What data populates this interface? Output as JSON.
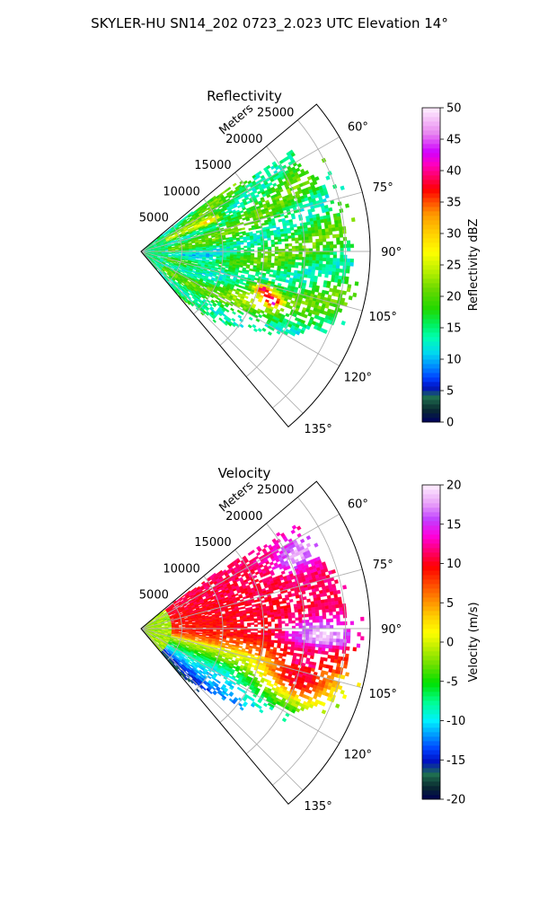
{
  "figure": {
    "title": "SKYLER-HU  SN14_202  0723_2.023 UTC Elevation 14°"
  },
  "chart_data": [
    {
      "type": "heatmap",
      "subtype": "polar-sector",
      "title": "Reflectivity",
      "range_label": "Meters",
      "range_ticks": [
        5000,
        10000,
        15000,
        20000,
        25000
      ],
      "range_max": 28000,
      "theta_ticks": [
        "60°",
        "75°",
        "90°",
        "105°",
        "120°",
        "135°"
      ],
      "theta_tick_values": [
        60,
        75,
        90,
        105,
        120,
        135
      ],
      "theta_range": [
        50,
        140
      ],
      "grid": true,
      "colorbar": {
        "label": "Reflectivity dBZ",
        "min": 0,
        "max": 50,
        "ticks": [
          "0",
          "5",
          "10",
          "15",
          "20",
          "25",
          "30",
          "35",
          "40",
          "45",
          "50"
        ]
      },
      "features": [
        {
          "azimuth": 107,
          "range": 15500,
          "value": 45
        },
        {
          "azimuth": 110,
          "range": 17000,
          "value": 42
        },
        {
          "azimuth": 66,
          "range": 9000,
          "value": 33
        },
        {
          "azimuth": 100,
          "range": 8000,
          "value": 14
        },
        {
          "azimuth": 85,
          "range": 5000,
          "value": 22
        }
      ]
    },
    {
      "type": "heatmap",
      "subtype": "polar-sector",
      "title": "Velocity",
      "range_label": "Meters",
      "range_ticks": [
        5000,
        10000,
        15000,
        20000,
        25000
      ],
      "range_max": 28000,
      "theta_ticks": [
        "60°",
        "75°",
        "90°",
        "105°",
        "120°",
        "135°"
      ],
      "theta_tick_values": [
        60,
        75,
        90,
        105,
        120,
        135
      ],
      "theta_range": [
        50,
        140
      ],
      "grid": true,
      "colorbar": {
        "label": "Velocity (m/s)",
        "min": -20,
        "max": 20,
        "ticks": [
          "-20",
          "-15",
          "-10",
          "-5",
          "0",
          "5",
          "10",
          "15",
          "20"
        ]
      },
      "features": [
        {
          "azimuth": 75,
          "range": 12000,
          "value": 10
        },
        {
          "azimuth": 108,
          "range": 20000,
          "value": 15
        },
        {
          "azimuth": 115,
          "range": 10000,
          "value": -3
        },
        {
          "azimuth": 100,
          "range": 14000,
          "value": 2
        }
      ]
    }
  ]
}
